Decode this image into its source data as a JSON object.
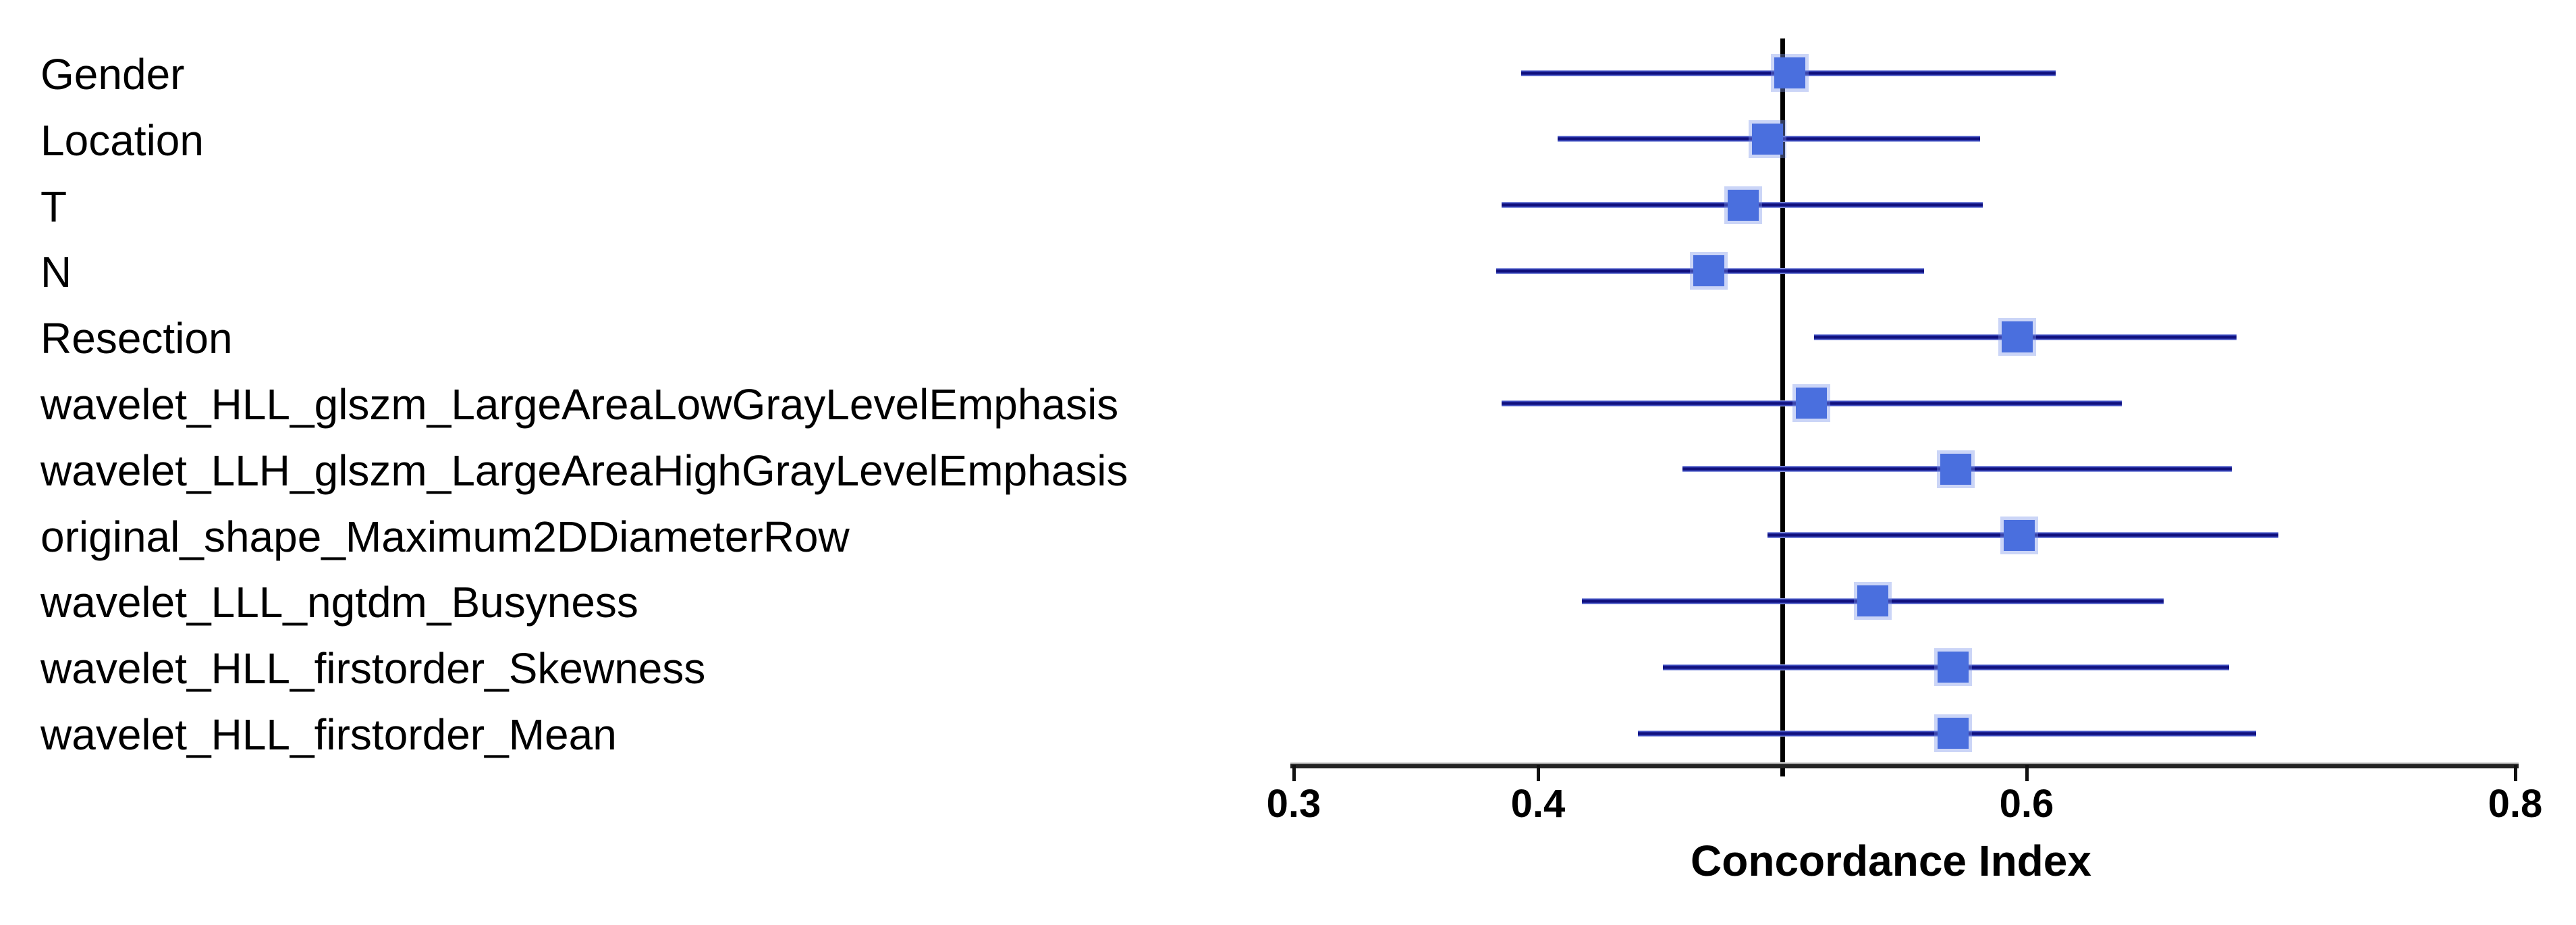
{
  "chart_data": {
    "type": "forest",
    "title": "",
    "xlabel": "Concordance Index",
    "ylabel": "",
    "xlim": [
      0.3,
      0.8
    ],
    "grid": false,
    "legend": null,
    "x_ticks": [
      {
        "value": 0.3,
        "label": "0.3"
      },
      {
        "value": 0.4,
        "label": "0.4"
      },
      {
        "value": 0.6,
        "label": "0.6"
      },
      {
        "value": 0.8,
        "label": "0.8"
      }
    ],
    "reference_line_x": 0.5,
    "rows": [
      {
        "label": "Gender",
        "value": 0.503,
        "ci_low": 0.393,
        "ci_high": 0.612
      },
      {
        "label": "Location",
        "value": 0.494,
        "ci_low": 0.408,
        "ci_high": 0.581
      },
      {
        "label": "T",
        "value": 0.484,
        "ci_low": 0.385,
        "ci_high": 0.582
      },
      {
        "label": "N",
        "value": 0.47,
        "ci_low": 0.383,
        "ci_high": 0.558
      },
      {
        "label": "Resection",
        "value": 0.596,
        "ci_low": 0.513,
        "ci_high": 0.686
      },
      {
        "label": "wavelet_HLL_glszm_LargeAreaLowGrayLevelEmphasis",
        "value": 0.512,
        "ci_low": 0.385,
        "ci_high": 0.639
      },
      {
        "label": "wavelet_LLH_glszm_LargeAreaHighGrayLevelEmphasis",
        "value": 0.571,
        "ci_low": 0.459,
        "ci_high": 0.684
      },
      {
        "label": "original_shape_Maximum2DDiameterRow",
        "value": 0.597,
        "ci_low": 0.494,
        "ci_high": 0.703
      },
      {
        "label": "wavelet_LLL_ngtdm_Busyness",
        "value": 0.537,
        "ci_low": 0.418,
        "ci_high": 0.656
      },
      {
        "label": "wavelet_HLL_firstorder_Skewness",
        "value": 0.57,
        "ci_low": 0.451,
        "ci_high": 0.683
      },
      {
        "label": "wavelet_HLL_firstorder_Mean",
        "value": 0.57,
        "ci_low": 0.441,
        "ci_high": 0.694
      }
    ],
    "colors": {
      "marker": "#4a6fde",
      "ci_line_core": "#10107d",
      "ci_line_mid": "#3c4cc4",
      "ci_line_edge": "#b9c0ea",
      "reference_line": "#000000",
      "axis": "#232323",
      "text": "#000000"
    }
  }
}
